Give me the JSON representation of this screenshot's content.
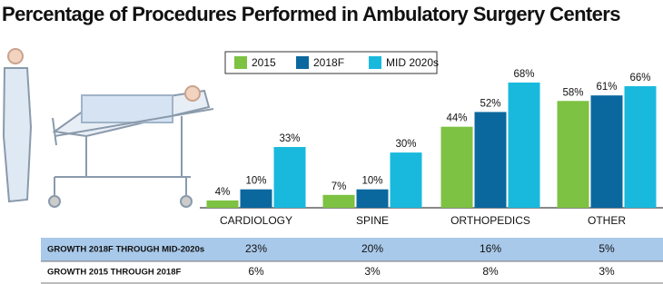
{
  "chart_data": {
    "type": "bar",
    "title": "Percentage of Procedures Performed in Ambulatory Surgery Centers",
    "categories": [
      "CARDIOLOGY",
      "SPINE",
      "ORTHOPEDICS",
      "OTHER"
    ],
    "series": [
      {
        "name": "2015",
        "color": "#7dc242",
        "values": [
          4,
          7,
          44,
          58
        ],
        "value_labels": [
          "4%",
          "7%",
          "44%",
          "58%"
        ]
      },
      {
        "name": "2018F",
        "color": "#0a689f",
        "values": [
          10,
          10,
          52,
          61
        ],
        "value_labels": [
          "10%",
          "10%",
          "52%",
          "61%"
        ]
      },
      {
        "name": "MID 2020s",
        "color": "#19b9dd",
        "values": [
          33,
          30,
          68,
          66
        ],
        "value_labels": [
          "33%",
          "30%",
          "68%",
          "66%"
        ]
      }
    ]
  },
  "table": {
    "rows": [
      {
        "label": "GROWTH 2018F THROUGH MID-2020s",
        "values": [
          "23%",
          "20%",
          "16%",
          "5%"
        ]
      },
      {
        "label": "GROWTH 2015 THROUGH 2018F",
        "values": [
          "6%",
          "3%",
          "8%",
          "3%"
        ]
      }
    ]
  }
}
